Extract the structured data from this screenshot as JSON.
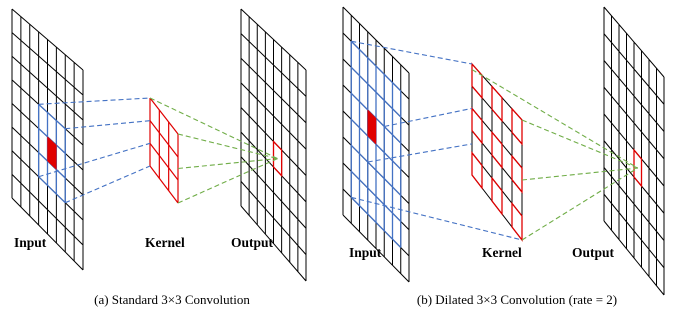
{
  "colors": {
    "grid": "#000000",
    "blue": "#4472c4",
    "red": "#e00000",
    "green": "#70ad47",
    "center_cell": "#e00000"
  },
  "panel_a": {
    "caption": "(a) Standard 3×3 Convolution",
    "input_label": "Input",
    "kernel_label": "Kernel",
    "output_label": "Output",
    "input_size": 8,
    "output_size": 8,
    "kernel_size": 3,
    "dilation": 1
  },
  "panel_b": {
    "caption": "(b) Dilated 3×3 Convolution (rate = 2)",
    "input_label": "Input",
    "kernel_label": "Kernel",
    "output_label": "Output",
    "input_size": 8,
    "output_size": 8,
    "kernel_size": 3,
    "dilation": 2
  }
}
